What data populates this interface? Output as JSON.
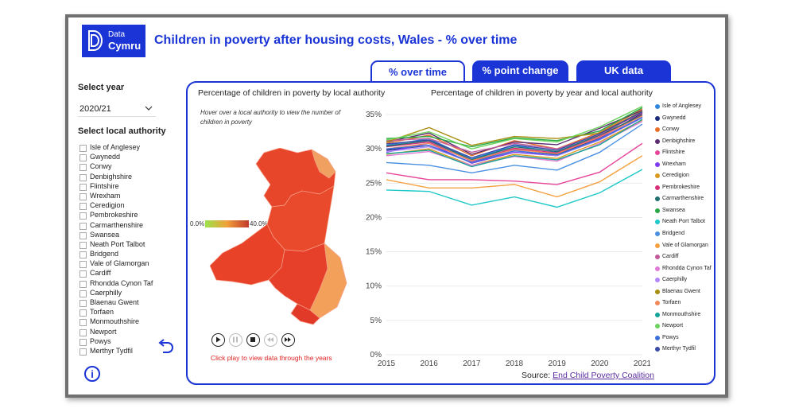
{
  "header": {
    "logo_line1": "Data",
    "logo_line2": "Cymru",
    "title": "Children in poverty after housing costs, Wales - % over time"
  },
  "tabs": [
    {
      "label": "% over time",
      "active": true
    },
    {
      "label": "% point change",
      "active": false
    },
    {
      "label": "UK data",
      "active": false
    }
  ],
  "sidebar": {
    "year_label": "Select year",
    "year_value": "2020/21",
    "la_label": "Select local authority",
    "authorities": [
      "Isle of Anglesey",
      "Gwynedd",
      "Conwy",
      "Denbighshire",
      "Flintshire",
      "Wrexham",
      "Ceredigion",
      "Pembrokeshire",
      "Carmarthenshire",
      "Swansea",
      "Neath Port Talbot",
      "Bridgend",
      "Vale of Glamorgan",
      "Cardiff",
      "Rhondda Cynon Taf",
      "Caerphilly",
      "Blaenau Gwent",
      "Torfaen",
      "Monmouthshire",
      "Newport",
      "Powys",
      "Merthyr Tydfil"
    ]
  },
  "map_panel": {
    "title": "Percentage of children in poverty by local authority",
    "hover_note": "Hover over a local authority to view the number of children in poverty",
    "scale_min": "0.0%",
    "scale_max": "40.0%",
    "play_note": "Click play to view data through the years",
    "colors": {
      "scale_low": "#9be34a",
      "scale_mid": "#f2a03a",
      "scale_high": "#c0392b"
    }
  },
  "icons": [
    "logo-icon",
    "chevron-down-icon",
    "undo-icon",
    "info-icon",
    "play-icon",
    "pause-icon",
    "stop-icon",
    "previous-icon",
    "next-icon"
  ],
  "info_glyph": "i",
  "chart_data": {
    "type": "line",
    "title": "Percentage of children in poverty by year and local authority",
    "x": [
      "2015",
      "2016",
      "2017",
      "2018",
      "2019",
      "2020",
      "2021"
    ],
    "ylim": [
      0,
      35
    ],
    "yticks": [
      "0%",
      "5%",
      "10%",
      "15%",
      "20%",
      "25%",
      "30%",
      "35%"
    ],
    "ytick_values": [
      0,
      5,
      10,
      15,
      20,
      25,
      30,
      35
    ],
    "legend_position": "right",
    "series": [
      {
        "name": "Isle of Anglesey",
        "color": "#2e86de",
        "values": [
          30.5,
          31.5,
          28.5,
          30.5,
          29.5,
          32.0,
          35.5
        ]
      },
      {
        "name": "Gwynedd",
        "color": "#1b2a7a",
        "values": [
          29.8,
          30.5,
          28.0,
          30.0,
          29.2,
          31.6,
          35.2
        ]
      },
      {
        "name": "Conwy",
        "color": "#e8702a",
        "values": [
          30.8,
          32.0,
          29.0,
          31.2,
          30.0,
          32.4,
          35.8
        ]
      },
      {
        "name": "Denbighshire",
        "color": "#5b2c6f",
        "values": [
          31.0,
          32.3,
          29.2,
          31.0,
          30.6,
          33.0,
          35.6
        ]
      },
      {
        "name": "Flintshire",
        "color": "#e8449a",
        "values": [
          26.5,
          25.5,
          25.5,
          25.3,
          24.8,
          26.6,
          30.8
        ]
      },
      {
        "name": "Wrexham",
        "color": "#7d3cf0",
        "values": [
          29.5,
          30.8,
          27.9,
          29.5,
          29.0,
          31.5,
          34.6
        ]
      },
      {
        "name": "Ceredigion",
        "color": "#d99a1e",
        "values": [
          29.2,
          30.0,
          27.6,
          29.2,
          28.6,
          31.0,
          34.2
        ]
      },
      {
        "name": "Pembrokeshire",
        "color": "#d6327a",
        "values": [
          30.3,
          31.0,
          28.2,
          30.1,
          29.4,
          31.8,
          35.0
        ]
      },
      {
        "name": "Carmarthenshire",
        "color": "#1f6f6f",
        "values": [
          30.4,
          31.2,
          28.4,
          30.3,
          29.6,
          32.0,
          34.9
        ]
      },
      {
        "name": "Swansea",
        "color": "#27a745",
        "values": [
          31.5,
          31.8,
          30.3,
          31.6,
          31.2,
          32.6,
          36.0
        ]
      },
      {
        "name": "Neath Port Talbot",
        "color": "#1ec8c8",
        "values": [
          24.0,
          23.8,
          21.8,
          23.0,
          21.5,
          23.6,
          27.0
        ]
      },
      {
        "name": "Bridgend",
        "color": "#4a90e2",
        "values": [
          28.0,
          27.6,
          26.5,
          27.6,
          26.9,
          29.5,
          33.6
        ]
      },
      {
        "name": "Vale of Glamorgan",
        "color": "#f5a142",
        "values": [
          25.5,
          24.3,
          24.3,
          24.8,
          23.0,
          25.2,
          29.0
        ]
      },
      {
        "name": "Cardiff",
        "color": "#c25b9b",
        "values": [
          31.2,
          31.5,
          29.5,
          30.8,
          30.0,
          32.1,
          35.3
        ]
      },
      {
        "name": "Rhondda Cynon Taf",
        "color": "#e07ad6",
        "values": [
          29.0,
          29.6,
          27.6,
          28.9,
          28.2,
          30.8,
          34.0
        ]
      },
      {
        "name": "Caerphilly",
        "color": "#b388ff",
        "values": [
          29.6,
          30.3,
          28.0,
          29.8,
          29.0,
          31.3,
          34.5
        ]
      },
      {
        "name": "Blaenau Gwent",
        "color": "#a88e0e",
        "values": [
          31.0,
          33.1,
          30.5,
          31.8,
          31.5,
          32.3,
          35.5
        ]
      },
      {
        "name": "Torfaen",
        "color": "#f08a5d",
        "values": [
          30.0,
          30.8,
          28.3,
          29.9,
          29.3,
          31.7,
          34.8
        ]
      },
      {
        "name": "Monmouthshire",
        "color": "#17a398",
        "values": [
          29.3,
          29.8,
          27.4,
          29.0,
          28.4,
          30.6,
          34.3
        ]
      },
      {
        "name": "Newport",
        "color": "#6bd35b",
        "values": [
          31.3,
          32.5,
          30.0,
          31.5,
          31.0,
          33.2,
          36.2
        ]
      },
      {
        "name": "Powys",
        "color": "#3c6fd8",
        "values": [
          30.0,
          30.5,
          28.0,
          29.7,
          29.1,
          31.4,
          34.6
        ]
      },
      {
        "name": "Merthyr Tydfil",
        "color": "#3a4aa8",
        "values": [
          30.7,
          31.3,
          28.7,
          30.6,
          29.8,
          32.2,
          35.4
        ]
      }
    ]
  },
  "source": {
    "prefix": "Source: ",
    "link": "End Child Poverty Coalition"
  }
}
